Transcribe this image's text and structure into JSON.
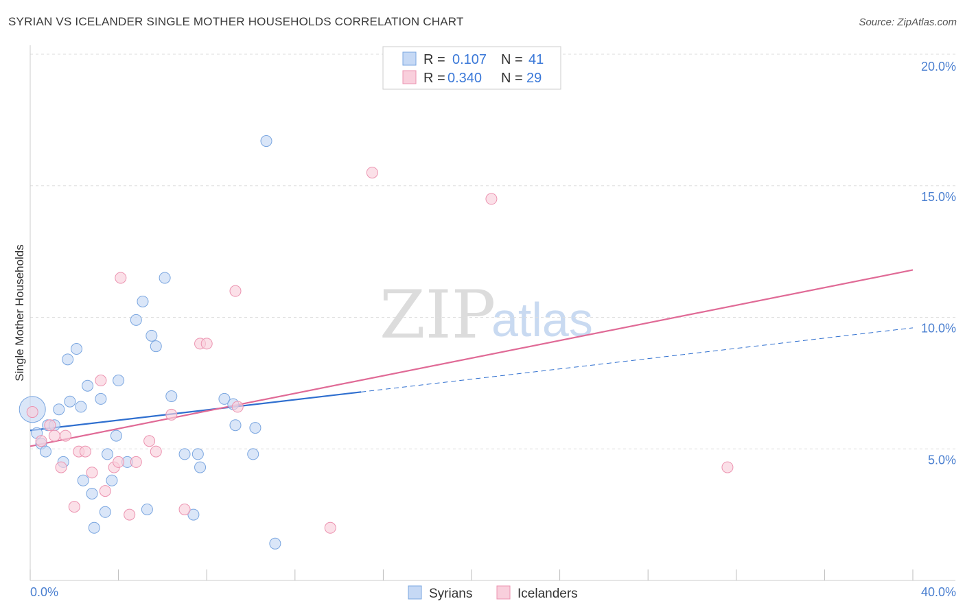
{
  "header": {
    "title": "SYRIAN VS ICELANDER SINGLE MOTHER HOUSEHOLDS CORRELATION CHART",
    "source": "Source: ZipAtlas.com"
  },
  "watermark": {
    "zip": "ZIP",
    "atlas": "atlas"
  },
  "legend": {
    "rows": [
      {
        "series": "Syrians",
        "r_label": "R =",
        "r_value": "0.107",
        "n_label": "N =",
        "n_value": "41"
      },
      {
        "series": "Icelanders",
        "r_label": "R =",
        "r_value": "0.340",
        "n_label": "N =",
        "n_value": "29"
      }
    ]
  },
  "colors": {
    "syrians_fill": "#c6d9f5",
    "syrians_stroke": "#7aa6e0",
    "syrians_line": "#2f6fcf",
    "icelanders_fill": "#f9cfdc",
    "icelanders_stroke": "#ec93b0",
    "icelanders_line": "#e06a96",
    "grid": "#dddddd",
    "axis_text": "#4a7fd0"
  },
  "chart_data": {
    "type": "scatter",
    "title": "SYRIAN VS ICELANDER SINGLE MOTHER HOUSEHOLDS CORRELATION CHART",
    "xlabel": "",
    "ylabel": "Single Mother Households",
    "xlim": [
      0,
      40
    ],
    "ylim": [
      0,
      20
    ],
    "x_tick_labels": [
      "0.0%",
      "40.0%"
    ],
    "y_ticks": [
      5,
      10,
      15,
      20
    ],
    "y_tick_labels": [
      "5.0%",
      "10.0%",
      "15.0%",
      "20.0%"
    ],
    "grid": true,
    "legend_position": "top-center",
    "series": [
      {
        "name": "Syrians",
        "r": 0.107,
        "n": 41,
        "trend": {
          "x0": 0,
          "y0": 5.7,
          "x_solid_end": 15,
          "x_end": 40,
          "y_end": 9.6
        },
        "points": [
          {
            "x": 0.1,
            "y": 6.5,
            "big": true
          },
          {
            "x": 0.3,
            "y": 5.6
          },
          {
            "x": 0.5,
            "y": 5.2
          },
          {
            "x": 0.7,
            "y": 4.9
          },
          {
            "x": 0.8,
            "y": 5.9
          },
          {
            "x": 1.1,
            "y": 5.9
          },
          {
            "x": 1.3,
            "y": 6.5
          },
          {
            "x": 1.5,
            "y": 4.5
          },
          {
            "x": 1.7,
            "y": 8.4
          },
          {
            "x": 1.8,
            "y": 6.8
          },
          {
            "x": 2.1,
            "y": 8.8
          },
          {
            "x": 2.3,
            "y": 6.6
          },
          {
            "x": 2.4,
            "y": 3.8
          },
          {
            "x": 2.6,
            "y": 7.4
          },
          {
            "x": 2.8,
            "y": 3.3
          },
          {
            "x": 2.9,
            "y": 2.0
          },
          {
            "x": 3.2,
            "y": 6.9
          },
          {
            "x": 3.4,
            "y": 2.6
          },
          {
            "x": 3.5,
            "y": 4.8
          },
          {
            "x": 3.7,
            "y": 3.8
          },
          {
            "x": 3.9,
            "y": 5.5
          },
          {
            "x": 4.0,
            "y": 7.6
          },
          {
            "x": 4.4,
            "y": 4.5
          },
          {
            "x": 4.8,
            "y": 9.9
          },
          {
            "x": 5.1,
            "y": 10.6
          },
          {
            "x": 5.3,
            "y": 2.7
          },
          {
            "x": 5.5,
            "y": 9.3
          },
          {
            "x": 5.7,
            "y": 8.9
          },
          {
            "x": 6.1,
            "y": 11.5
          },
          {
            "x": 6.4,
            "y": 7.0
          },
          {
            "x": 7.0,
            "y": 4.8
          },
          {
            "x": 7.4,
            "y": 2.5
          },
          {
            "x": 7.6,
            "y": 4.8
          },
          {
            "x": 7.7,
            "y": 4.3
          },
          {
            "x": 8.8,
            "y": 6.9
          },
          {
            "x": 9.2,
            "y": 6.7
          },
          {
            "x": 9.3,
            "y": 5.9
          },
          {
            "x": 10.1,
            "y": 4.8
          },
          {
            "x": 10.2,
            "y": 5.8
          },
          {
            "x": 10.7,
            "y": 16.7
          },
          {
            "x": 11.1,
            "y": 1.4
          }
        ]
      },
      {
        "name": "Icelanders",
        "r": 0.34,
        "n": 29,
        "trend": {
          "x0": 0,
          "y0": 5.1,
          "x_end": 40,
          "y_end": 11.8
        },
        "points": [
          {
            "x": 0.1,
            "y": 6.4
          },
          {
            "x": 0.5,
            "y": 5.3
          },
          {
            "x": 0.9,
            "y": 5.9
          },
          {
            "x": 1.1,
            "y": 5.5
          },
          {
            "x": 1.4,
            "y": 4.3
          },
          {
            "x": 1.6,
            "y": 5.5
          },
          {
            "x": 2.0,
            "y": 2.8
          },
          {
            "x": 2.2,
            "y": 4.9
          },
          {
            "x": 2.5,
            "y": 4.9
          },
          {
            "x": 2.8,
            "y": 4.1
          },
          {
            "x": 3.2,
            "y": 7.6
          },
          {
            "x": 3.4,
            "y": 3.4
          },
          {
            "x": 3.8,
            "y": 4.3
          },
          {
            "x": 4.0,
            "y": 4.5
          },
          {
            "x": 4.1,
            "y": 11.5
          },
          {
            "x": 4.5,
            "y": 2.5
          },
          {
            "x": 4.8,
            "y": 4.5
          },
          {
            "x": 5.4,
            "y": 5.3
          },
          {
            "x": 5.7,
            "y": 4.9
          },
          {
            "x": 6.4,
            "y": 6.3
          },
          {
            "x": 7.0,
            "y": 2.7
          },
          {
            "x": 7.7,
            "y": 9.0
          },
          {
            "x": 8.0,
            "y": 9.0
          },
          {
            "x": 9.3,
            "y": 11.0
          },
          {
            "x": 9.4,
            "y": 6.6
          },
          {
            "x": 13.6,
            "y": 2.0
          },
          {
            "x": 15.5,
            "y": 15.5
          },
          {
            "x": 20.9,
            "y": 14.5
          },
          {
            "x": 31.6,
            "y": 4.3
          }
        ]
      }
    ]
  }
}
